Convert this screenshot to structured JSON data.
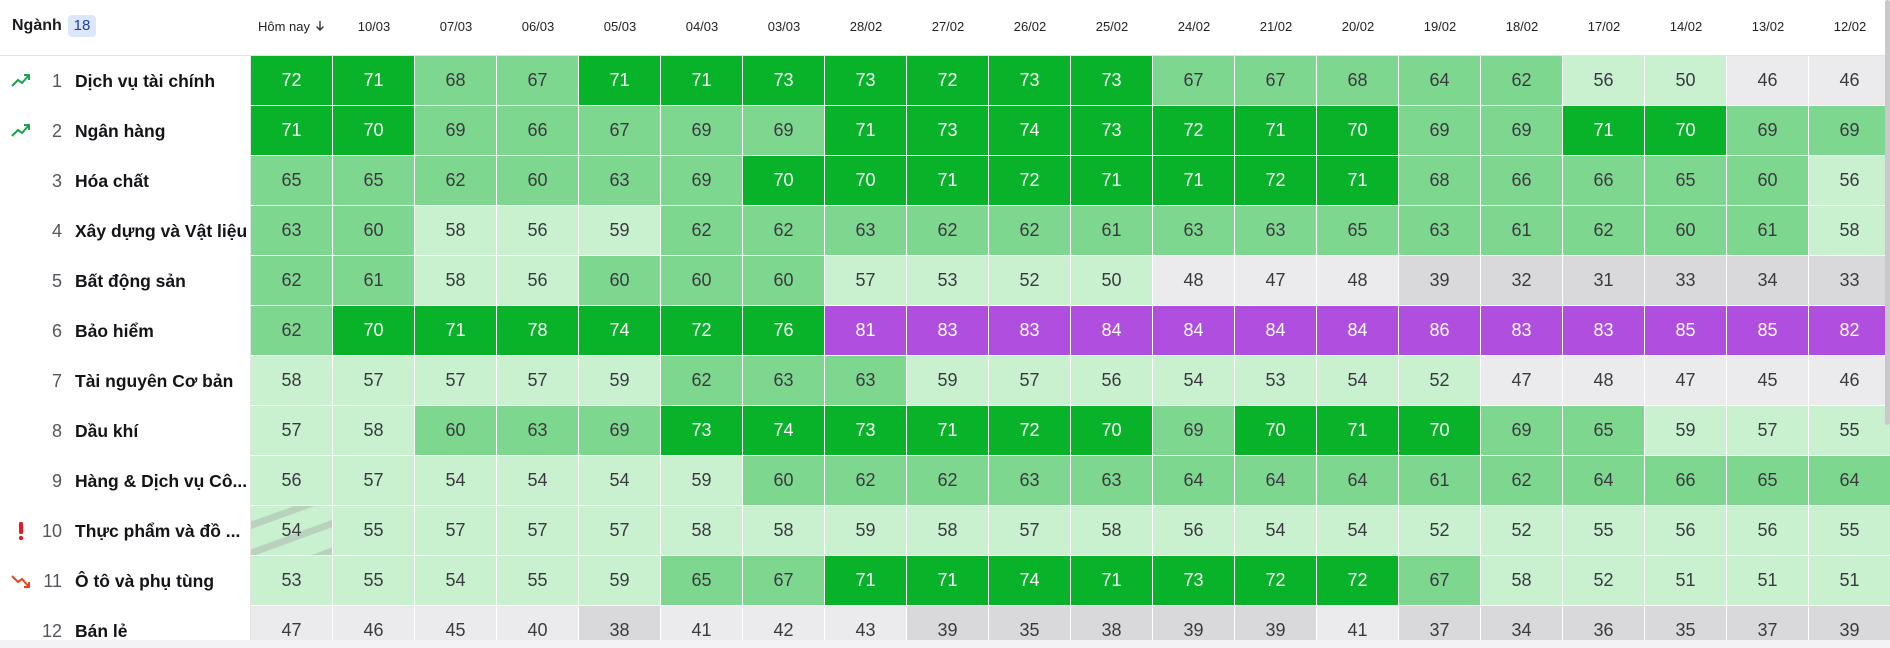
{
  "header": {
    "title": "Ngành",
    "count": 18,
    "columns": [
      "Hôm nay",
      "10/03",
      "07/03",
      "06/03",
      "05/03",
      "04/03",
      "03/03",
      "28/02",
      "27/02",
      "26/02",
      "25/02",
      "24/02",
      "21/02",
      "20/02",
      "19/02",
      "18/02",
      "17/02",
      "14/02",
      "13/02",
      "12/02"
    ]
  },
  "table": {
    "rows": [
      {
        "rank": 1,
        "name": "Dịch vụ tài chính",
        "status": "up",
        "values": [
          72,
          71,
          68,
          67,
          71,
          71,
          73,
          73,
          72,
          73,
          73,
          67,
          67,
          68,
          64,
          62,
          56,
          50,
          46,
          46
        ]
      },
      {
        "rank": 2,
        "name": "Ngân hàng",
        "status": "up",
        "values": [
          71,
          70,
          69,
          66,
          67,
          69,
          69,
          71,
          73,
          74,
          73,
          72,
          71,
          70,
          69,
          69,
          71,
          70,
          69,
          69
        ]
      },
      {
        "rank": 3,
        "name": "Hóa chất",
        "values": [
          65,
          65,
          62,
          60,
          63,
          69,
          70,
          70,
          71,
          72,
          71,
          71,
          72,
          71,
          68,
          66,
          66,
          65,
          60,
          56
        ]
      },
      {
        "rank": 4,
        "name": "Xây dựng và Vật liệu",
        "values": [
          63,
          60,
          58,
          56,
          59,
          62,
          62,
          63,
          62,
          62,
          61,
          63,
          63,
          65,
          63,
          61,
          62,
          60,
          61,
          58
        ]
      },
      {
        "rank": 5,
        "name": "Bất động sản",
        "values": [
          62,
          61,
          58,
          56,
          60,
          60,
          60,
          57,
          53,
          52,
          50,
          48,
          47,
          48,
          39,
          32,
          31,
          33,
          34,
          33
        ]
      },
      {
        "rank": 6,
        "name": "Bảo hiểm",
        "values": [
          62,
          70,
          71,
          78,
          74,
          72,
          76,
          81,
          83,
          83,
          84,
          84,
          84,
          84,
          86,
          83,
          83,
          85,
          85,
          82
        ]
      },
      {
        "rank": 7,
        "name": "Tài nguyên Cơ bản",
        "values": [
          58,
          57,
          57,
          57,
          59,
          62,
          63,
          63,
          59,
          57,
          56,
          54,
          53,
          54,
          52,
          47,
          48,
          47,
          45,
          46
        ]
      },
      {
        "rank": 8,
        "name": "Dầu khí",
        "values": [
          57,
          58,
          60,
          63,
          69,
          73,
          74,
          73,
          71,
          72,
          70,
          69,
          70,
          71,
          70,
          69,
          65,
          59,
          57,
          55
        ]
      },
      {
        "rank": 9,
        "name": "Hàng & Dịch vụ Cô...",
        "values": [
          56,
          57,
          54,
          54,
          54,
          59,
          60,
          62,
          62,
          63,
          63,
          64,
          64,
          64,
          61,
          62,
          64,
          66,
          65,
          64
        ]
      },
      {
        "rank": 10,
        "name": "Thực phẩm và đồ ...",
        "status": "alert",
        "values": [
          54,
          55,
          57,
          57,
          57,
          58,
          58,
          59,
          58,
          57,
          58,
          56,
          54,
          54,
          52,
          52,
          55,
          56,
          56,
          55
        ]
      },
      {
        "rank": 11,
        "name": "Ô tô và phụ tùng",
        "status": "down",
        "values": [
          53,
          55,
          54,
          55,
          59,
          65,
          67,
          71,
          71,
          74,
          71,
          73,
          72,
          72,
          67,
          58,
          52,
          51,
          51,
          51
        ]
      },
      {
        "rank": 12,
        "name": "Bán lẻ",
        "values": [
          47,
          46,
          45,
          40,
          38,
          41,
          42,
          43,
          39,
          35,
          38,
          39,
          39,
          41,
          37,
          34,
          36,
          35,
          37,
          39
        ]
      }
    ]
  }
}
